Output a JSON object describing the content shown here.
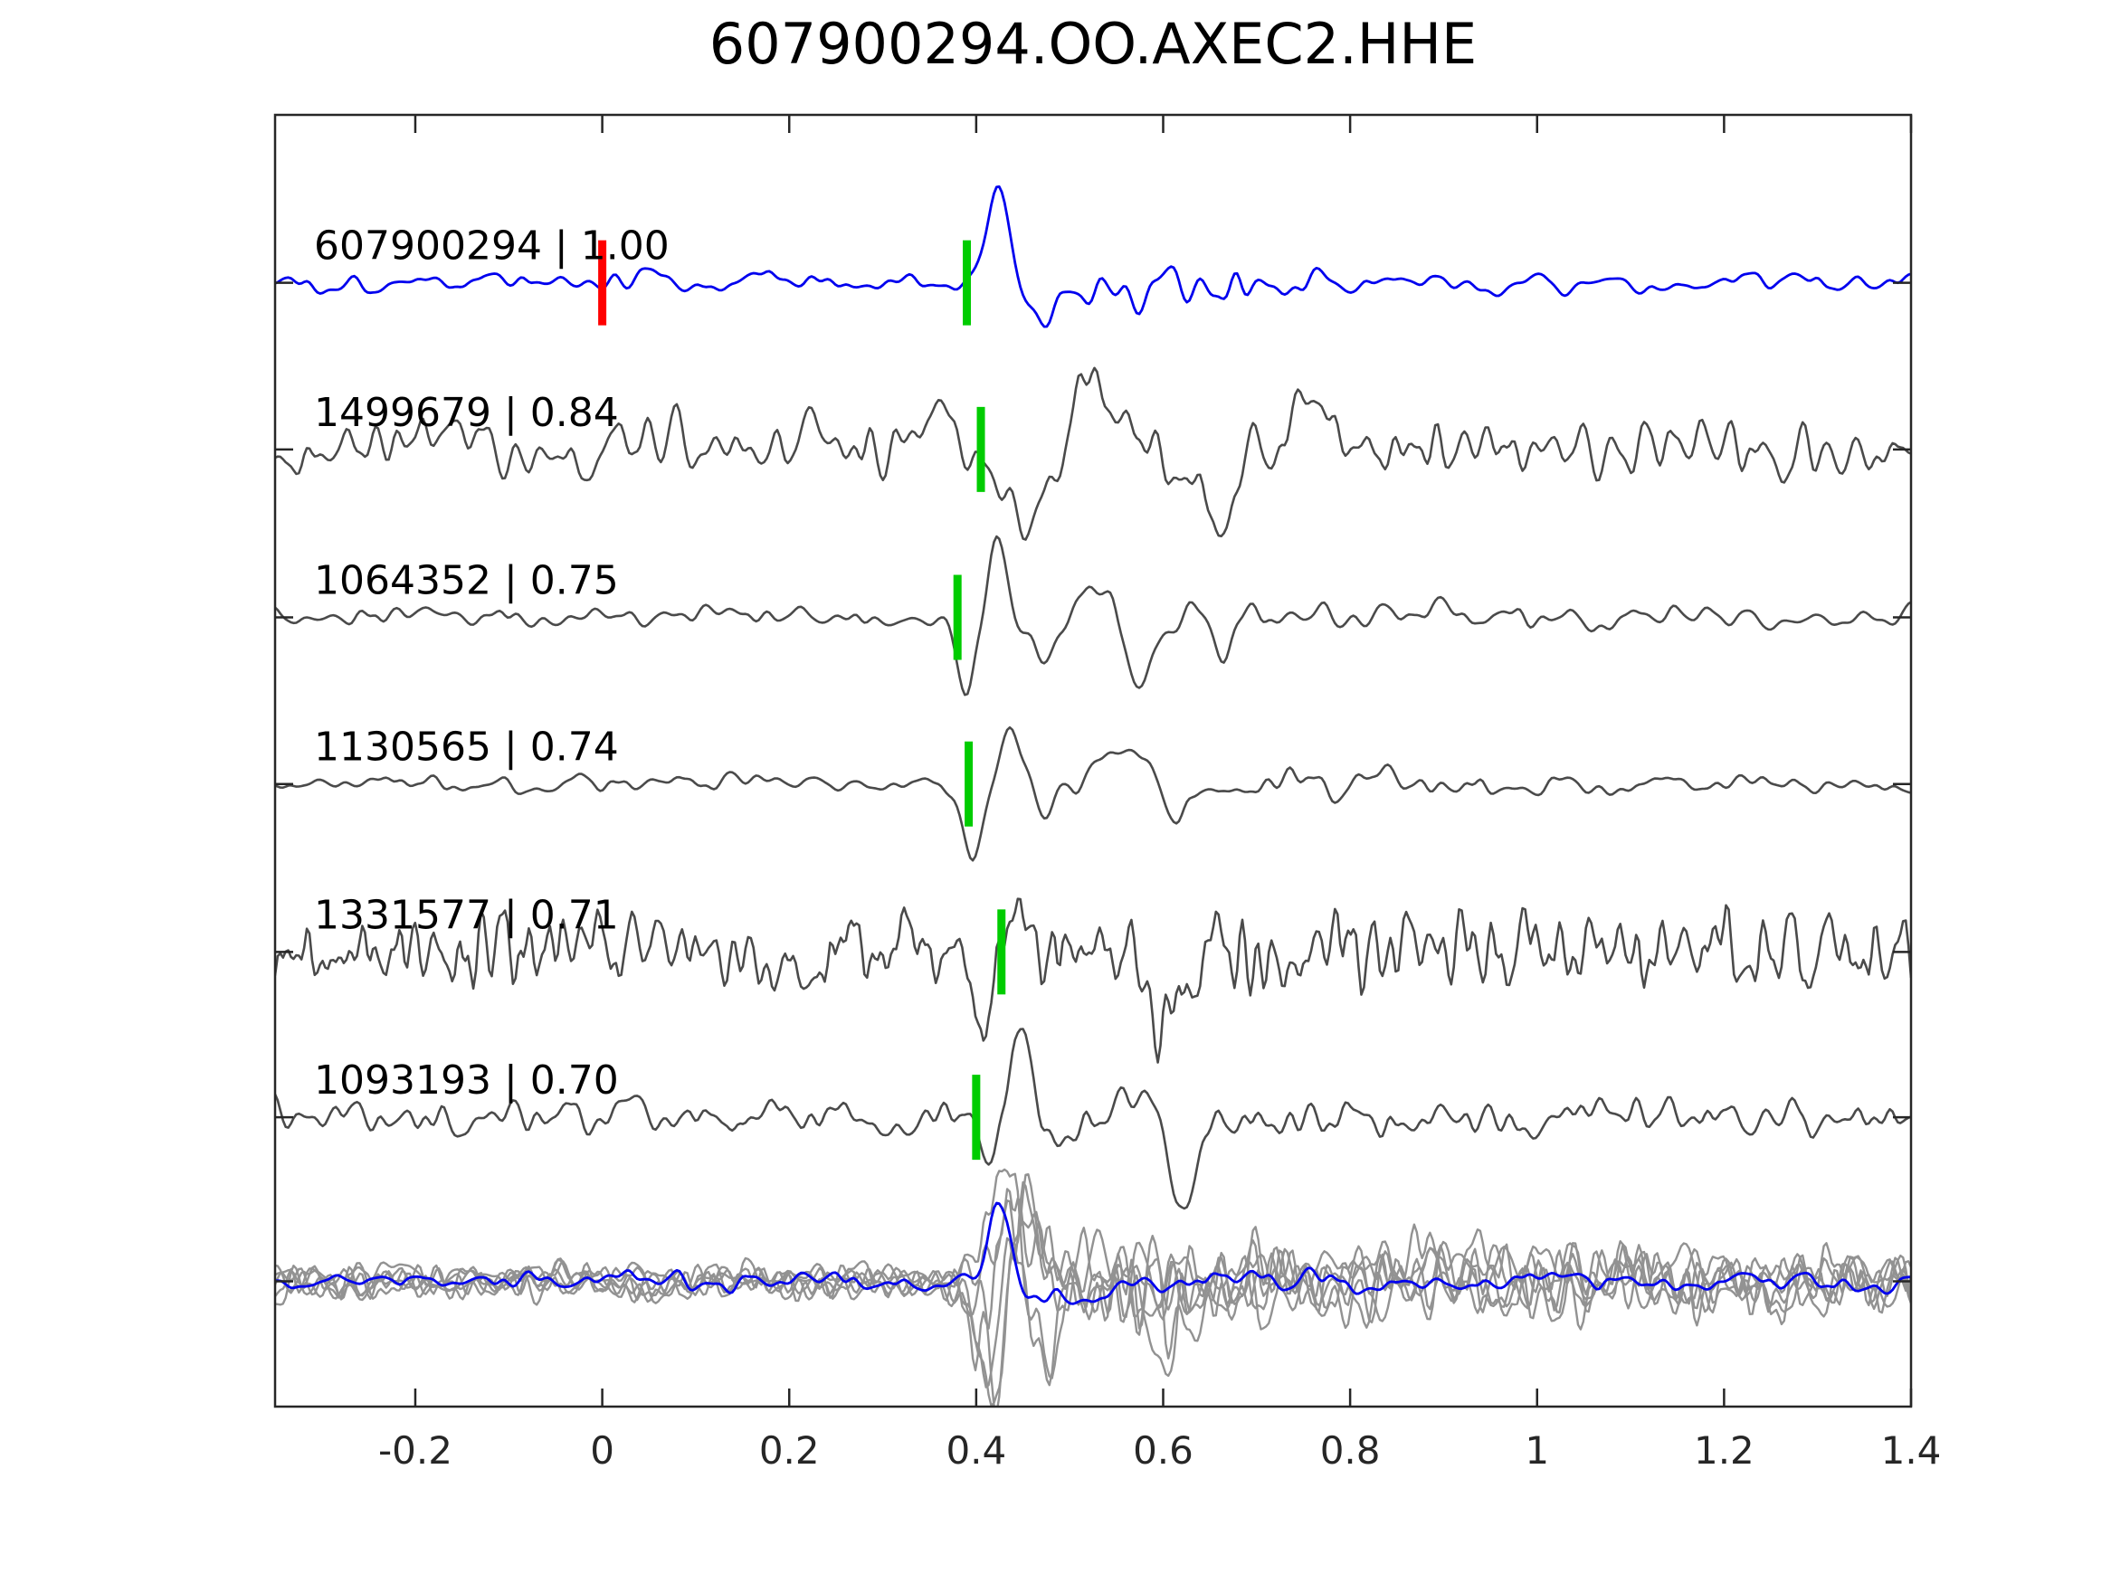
{
  "title": "607900294.OO.AXEC2.HHE",
  "chart_data": {
    "type": "line",
    "title": "607900294.OO.AXEC2.HHE",
    "xlabel": "",
    "ylabel": "",
    "xlim": [
      -0.35,
      1.4
    ],
    "x_ticks": [
      -0.2,
      0,
      0.2,
      0.4,
      0.6,
      0.8,
      1,
      1.2,
      1.4
    ],
    "x_tick_labels": [
      "-0.2",
      "0",
      "0.2",
      "0.4",
      "0.6",
      "0.8",
      "1",
      "1.2",
      "1.4"
    ],
    "grid": false,
    "legend": "none",
    "colors": {
      "template_trace": "#0000ee",
      "detection_trace": "#4a4a4a",
      "overlay_gray": "#929292",
      "pick_marker": "#00cc00",
      "origin_marker": "#ff0000",
      "axis": "#262626",
      "background": "#ffffff",
      "text": "#000000"
    },
    "row_fracs": [
      0.13,
      0.259,
      0.389,
      0.518,
      0.648,
      0.776,
      0.903
    ],
    "marker": {
      "half_height": 47,
      "width": 9
    },
    "traces": [
      {
        "id": "607900294",
        "cc": "1.00",
        "label": "607900294 | 1.00",
        "kind": "template",
        "pick_time": 0.39,
        "origin_time": 0,
        "seed": 101,
        "smooth": 8,
        "envelope": [
          [
            -0.35,
            13
          ],
          [
            0.36,
            13
          ],
          [
            0.44,
            13
          ],
          [
            0.5,
            28
          ],
          [
            0.62,
            30
          ],
          [
            0.78,
            17
          ],
          [
            1.0,
            13
          ],
          [
            1.4,
            13
          ]
        ],
        "pulses": [
          [
            0.425,
            0.019,
            100
          ],
          [
            0.461,
            0.022,
            -55
          ],
          [
            0.505,
            0.02,
            -18
          ]
        ]
      },
      {
        "id": "1499679",
        "cc": "0.84",
        "label": "1499679 | 0.84",
        "kind": "detection",
        "pick_time": 0.405,
        "seed": 202,
        "smooth": 5,
        "envelope": [
          [
            -0.35,
            36
          ],
          [
            0.33,
            36
          ],
          [
            0.5,
            40
          ],
          [
            0.8,
            40
          ],
          [
            1.4,
            36
          ]
        ],
        "pulses": [
          [
            0.365,
            0.025,
            60
          ],
          [
            0.452,
            0.028,
            -95
          ],
          [
            0.525,
            0.028,
            100
          ],
          [
            0.648,
            0.03,
            -78
          ],
          [
            0.76,
            0.028,
            50
          ]
        ]
      },
      {
        "id": "1064352",
        "cc": "0.75",
        "label": "1064352 | 0.75",
        "kind": "detection",
        "pick_time": 0.38,
        "seed": 303,
        "smooth": 7,
        "envelope": [
          [
            -0.35,
            14
          ],
          [
            0.34,
            12
          ],
          [
            0.46,
            18
          ],
          [
            0.56,
            24
          ],
          [
            0.75,
            19
          ],
          [
            1.4,
            14
          ]
        ],
        "pulses": [
          [
            0.388,
            0.013,
            -92
          ],
          [
            0.424,
            0.014,
            86
          ],
          [
            0.468,
            0.018,
            -40
          ],
          [
            0.525,
            0.02,
            45
          ],
          [
            0.573,
            0.02,
            -48
          ],
          [
            0.66,
            0.016,
            -42
          ]
        ]
      },
      {
        "id": "1130565",
        "cc": "0.74",
        "label": "1130565 | 0.74",
        "kind": "detection",
        "pick_time": 0.392,
        "seed": 404,
        "smooth": 7,
        "envelope": [
          [
            -0.35,
            11
          ],
          [
            0.34,
            10
          ],
          [
            0.5,
            20
          ],
          [
            0.72,
            20
          ],
          [
            1.0,
            14
          ],
          [
            1.4,
            12
          ]
        ],
        "pulses": [
          [
            0.396,
            0.015,
            -82
          ],
          [
            0.437,
            0.016,
            70
          ],
          [
            0.477,
            0.02,
            -30
          ],
          [
            0.555,
            0.024,
            38
          ],
          [
            0.615,
            0.02,
            -32
          ]
        ]
      },
      {
        "id": "1331577",
        "cc": "0.71",
        "label": "1331577 | 0.71",
        "kind": "detection",
        "pick_time": 0.427,
        "seed": 505,
        "smooth": 2,
        "envelope": [
          [
            -0.35,
            46
          ],
          [
            0.4,
            48
          ],
          [
            0.7,
            50
          ],
          [
            1.4,
            46
          ]
        ],
        "pulses": [
          [
            0.405,
            0.013,
            -80
          ],
          [
            0.44,
            0.014,
            65
          ],
          [
            0.604,
            0.016,
            -100
          ]
        ]
      },
      {
        "id": "1093193",
        "cc": "0.70",
        "label": "1093193 | 0.70",
        "kind": "detection",
        "pick_time": 0.4,
        "seed": 606,
        "smooth": 5,
        "envelope": [
          [
            -0.35,
            24
          ],
          [
            0.34,
            22
          ],
          [
            0.5,
            28
          ],
          [
            0.85,
            24
          ],
          [
            1.4,
            22
          ]
        ],
        "pulses": [
          [
            0.414,
            0.018,
            -62
          ],
          [
            0.447,
            0.015,
            108
          ],
          [
            0.49,
            0.02,
            -35
          ],
          [
            0.55,
            0.02,
            38
          ],
          [
            0.62,
            0.02,
            -112
          ]
        ]
      }
    ],
    "overlay_row": {
      "description": "all detections stacked in gray with template in blue",
      "gray": [
        {
          "seed": 71,
          "smooth": 3,
          "envelope": [
            [
              -0.35,
              20
            ],
            [
              0.36,
              20
            ],
            [
              0.43,
              60
            ],
            [
              0.6,
              50
            ],
            [
              0.95,
              40
            ],
            [
              1.4,
              34
            ]
          ],
          "pulses": [
            [
              0.41,
              0.02,
              -90
            ],
            [
              0.45,
              0.02,
              70
            ]
          ]
        },
        {
          "seed": 72,
          "smooth": 4,
          "envelope": [
            [
              -0.35,
              24
            ],
            [
              0.36,
              22
            ],
            [
              0.44,
              55
            ],
            [
              0.65,
              48
            ],
            [
              1.4,
              36
            ]
          ],
          "pulses": [
            [
              0.43,
              0.018,
              80
            ],
            [
              0.47,
              0.02,
              -110
            ]
          ]
        },
        {
          "seed": 73,
          "smooth": 3,
          "envelope": [
            [
              -0.35,
              18
            ],
            [
              0.36,
              20
            ],
            [
              0.42,
              65
            ],
            [
              0.6,
              55
            ],
            [
              1.4,
              40
            ]
          ],
          "pulses": [
            [
              0.4,
              0.02,
              -70
            ],
            [
              0.44,
              0.022,
              90
            ],
            [
              0.62,
              0.025,
              -80
            ]
          ]
        },
        {
          "seed": 74,
          "smooth": 4,
          "envelope": [
            [
              -0.35,
              22
            ],
            [
              0.36,
              20
            ],
            [
              0.45,
              60
            ],
            [
              0.7,
              45
            ],
            [
              1.4,
              38
            ]
          ],
          "pulses": [
            [
              0.415,
              0.016,
              -120
            ],
            [
              0.455,
              0.02,
              95
            ]
          ]
        },
        {
          "seed": 75,
          "smooth": 3,
          "envelope": [
            [
              -0.35,
              20
            ],
            [
              0.36,
              22
            ],
            [
              0.43,
              58
            ],
            [
              0.6,
              52
            ],
            [
              1.4,
              36
            ]
          ],
          "pulses": [
            [
              0.435,
              0.02,
              110
            ],
            [
              0.48,
              0.022,
              -85
            ],
            [
              0.6,
              0.02,
              -70
            ]
          ]
        },
        {
          "seed": 76,
          "smooth": 4,
          "envelope": [
            [
              -0.35,
              23
            ],
            [
              0.36,
              21
            ],
            [
              0.44,
              62
            ],
            [
              0.62,
              50
            ],
            [
              1.4,
              35
            ]
          ],
          "pulses": [
            [
              0.42,
              0.018,
              -95
            ],
            [
              0.46,
              0.02,
              85
            ],
            [
              0.88,
              0.015,
              60
            ]
          ]
        }
      ],
      "template": {
        "seed": 99,
        "smooth": 7,
        "envelope": [
          [
            -0.35,
            11
          ],
          [
            0.38,
            13
          ],
          [
            0.5,
            16
          ],
          [
            0.8,
            13
          ],
          [
            1.4,
            11
          ]
        ],
        "pulses": [
          [
            0.425,
            0.016,
            88
          ],
          [
            0.465,
            0.02,
            -30
          ],
          [
            0.53,
            0.04,
            -22
          ]
        ]
      }
    }
  }
}
